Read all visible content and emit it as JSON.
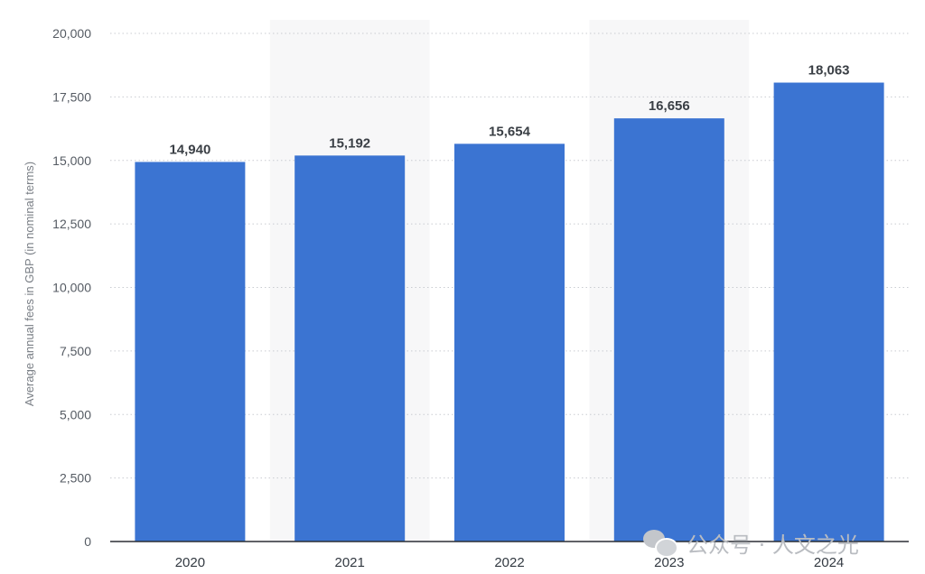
{
  "chart_data": {
    "type": "bar",
    "categories": [
      "2020",
      "2021",
      "2022",
      "2023",
      "2024"
    ],
    "values": [
      14940,
      15192,
      15654,
      16656,
      18063
    ],
    "data_labels": [
      "14,940",
      "15,192",
      "15,654",
      "16,656",
      "18,063"
    ],
    "title": "",
    "xlabel": "",
    "ylabel": "Average annual fees in GBP (in nominal terms)",
    "ylim": [
      0,
      20000
    ],
    "yticks": [
      0,
      2500,
      5000,
      7500,
      10000,
      12500,
      15000,
      17500,
      20000
    ],
    "ytick_labels": [
      "0",
      "2,500",
      "5,000",
      "7,500",
      "10,000",
      "12,500",
      "15,000",
      "17,500",
      "20,000"
    ],
    "grid": true,
    "bar_color": "#3b74d2"
  },
  "watermark": {
    "text": "公众号 · 人文之光",
    "icon": "wechat-icon"
  }
}
